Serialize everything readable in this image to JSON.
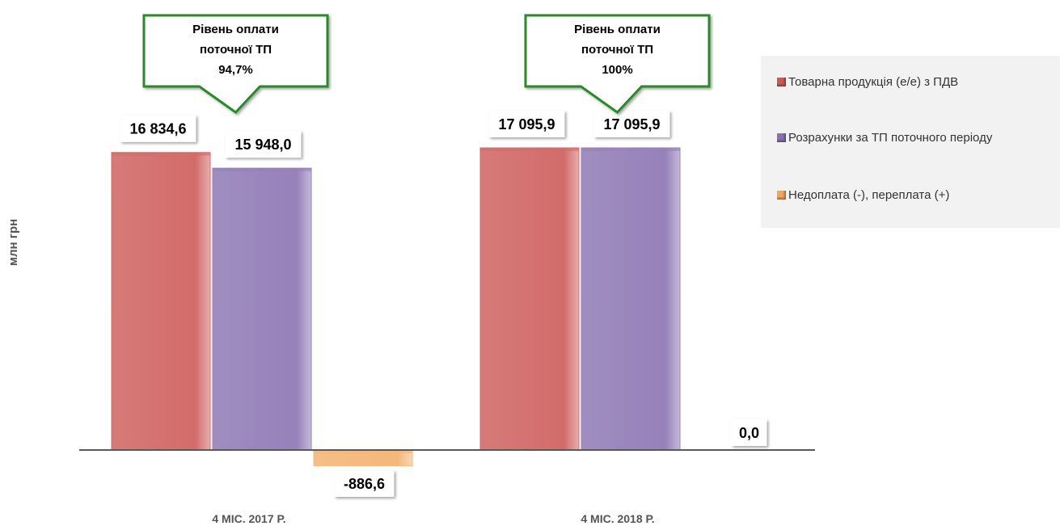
{
  "chart_data": {
    "type": "bar",
    "categories": [
      "4 МІС. 2017 Р.",
      "4 МІС. 2018 Р."
    ],
    "ylabel": "млн грн",
    "series": [
      {
        "name": "Товарна продукція (е/е) з ПДВ",
        "values": [
          16834.6,
          17095.9
        ],
        "labels": [
          "16 834,6",
          "17 095,9"
        ],
        "color": "#d26c6a"
      },
      {
        "name": "Розрахунки за ТП поточного періоду",
        "values": [
          15948.0,
          17095.9
        ],
        "labels": [
          "15 948,0",
          "17 095,9"
        ],
        "color": "#9681b9"
      },
      {
        "name": "Недоплата (-), переплата (+)",
        "values": [
          -886.6,
          0.0
        ],
        "labels": [
          "-886,6",
          "0,0"
        ],
        "color": "#f4b77b"
      }
    ],
    "callouts": [
      {
        "lines": [
          "Рівень оплати",
          "поточної ТП",
          "94,7%"
        ]
      },
      {
        "lines": [
          "Рівень оплати",
          "поточної ТП",
          "100%"
        ]
      }
    ],
    "legend_position": "right",
    "grid": false
  }
}
